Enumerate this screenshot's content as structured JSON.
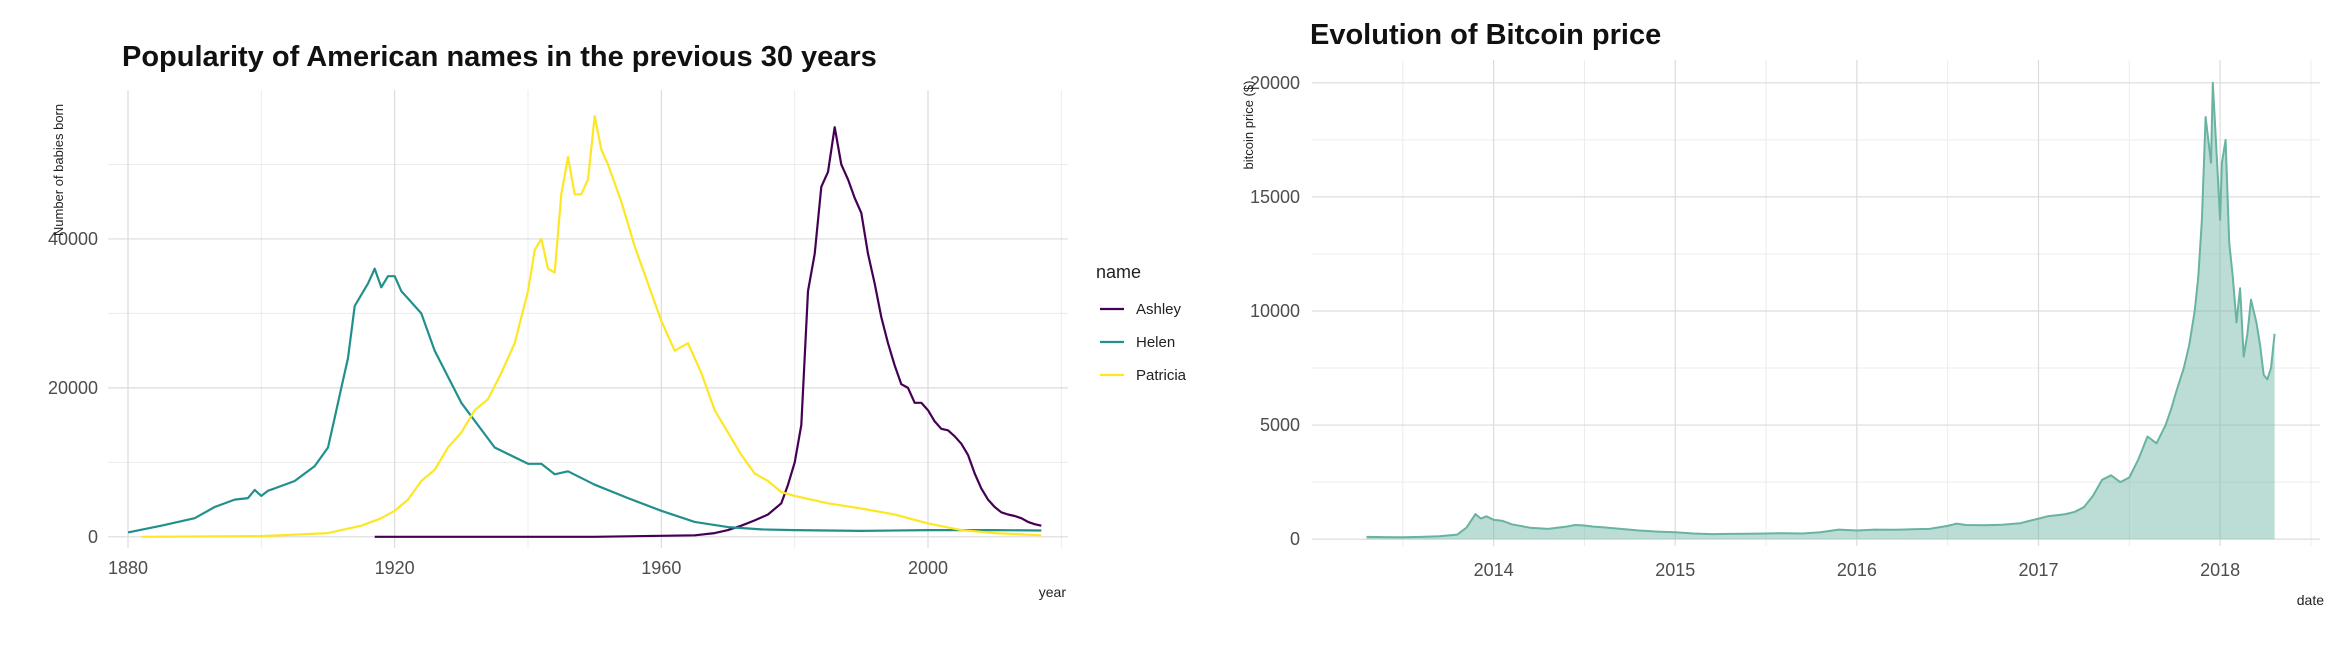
{
  "chart_data": [
    {
      "type": "line",
      "title": "Popularity of American names in the previous 30 years",
      "xlabel": "year",
      "ylabel": "Number of babies born",
      "xlim": [
        1877,
        2021
      ],
      "ylim": [
        -1500,
        60000
      ],
      "x_ticks": [
        1880,
        1920,
        1960,
        2000
      ],
      "y_ticks": [
        0,
        20000,
        40000
      ],
      "grid": true,
      "legend": {
        "title": "name",
        "position": "right"
      },
      "series": [
        {
          "name": "Ashley",
          "color": "#440154",
          "x": [
            1917,
            1930,
            1950,
            1965,
            1968,
            1970,
            1972,
            1974,
            1976,
            1978,
            1979,
            1980,
            1981,
            1982,
            1983,
            1984,
            1985,
            1986,
            1987,
            1988,
            1989,
            1990,
            1991,
            1992,
            1993,
            1994,
            1995,
            1996,
            1997,
            1998,
            1999,
            2000,
            2001,
            2002,
            2003,
            2004,
            2005,
            2006,
            2007,
            2008,
            2009,
            2010,
            2011,
            2012,
            2013,
            2014,
            2015,
            2016,
            2017
          ],
          "y": [
            0,
            0,
            0,
            200,
            500,
            900,
            1500,
            2200,
            3000,
            4500,
            7000,
            10000,
            15000,
            33000,
            38000,
            47000,
            49000,
            55000,
            50000,
            48000,
            45500,
            43500,
            38000,
            34000,
            29500,
            26000,
            23000,
            20500,
            20000,
            18000,
            18000,
            17000,
            15500,
            14500,
            14300,
            13500,
            12500,
            11000,
            8500,
            6500,
            5000,
            4000,
            3300,
            3000,
            2800,
            2500,
            2000,
            1700,
            1500
          ]
        },
        {
          "name": "Helen",
          "color": "#21908C",
          "x": [
            1880,
            1885,
            1890,
            1893,
            1896,
            1898,
            1899,
            1900,
            1901,
            1902,
            1905,
            1908,
            1910,
            1911,
            1912,
            1913,
            1914,
            1915,
            1916,
            1917,
            1918,
            1919,
            1920,
            1921,
            1922,
            1924,
            1926,
            1930,
            1935,
            1940,
            1942,
            1944,
            1946,
            1950,
            1955,
            1960,
            1965,
            1970,
            1975,
            1980,
            1990,
            2000,
            2010,
            2017
          ],
          "y": [
            600,
            1500,
            2500,
            4000,
            5000,
            5200,
            6300,
            5500,
            6200,
            6500,
            7500,
            9500,
            12000,
            16000,
            20000,
            24000,
            31000,
            32500,
            34000,
            36000,
            33500,
            35000,
            35000,
            33000,
            32000,
            30000,
            25000,
            18000,
            12000,
            9800,
            9800,
            8400,
            8800,
            7000,
            5200,
            3500,
            2000,
            1300,
            1000,
            900,
            800,
            900,
            900,
            850
          ]
        },
        {
          "name": "Patricia",
          "color": "#FDE725",
          "x": [
            1882,
            1900,
            1910,
            1915,
            1918,
            1920,
            1922,
            1924,
            1926,
            1928,
            1930,
            1932,
            1934,
            1936,
            1938,
            1940,
            1941,
            1942,
            1943,
            1944,
            1945,
            1946,
            1947,
            1948,
            1949,
            1950,
            1951,
            1952,
            1954,
            1956,
            1958,
            1960,
            1962,
            1964,
            1966,
            1968,
            1970,
            1972,
            1974,
            1976,
            1978,
            1980,
            1985,
            1990,
            1995,
            2000,
            2005,
            2010,
            2017
          ],
          "y": [
            0,
            100,
            500,
            1500,
            2500,
            3500,
            5000,
            7500,
            9000,
            12000,
            14000,
            17000,
            18500,
            22000,
            26000,
            33000,
            38500,
            40000,
            36000,
            35500,
            46000,
            51000,
            46000,
            46000,
            48000,
            56500,
            52000,
            50000,
            45000,
            39000,
            34000,
            29000,
            25000,
            26000,
            22000,
            17000,
            14000,
            11000,
            8500,
            7500,
            6000,
            5500,
            4500,
            3800,
            3000,
            1800,
            900,
            500,
            200
          ]
        }
      ]
    },
    {
      "type": "area",
      "title": "Evolution of Bitcoin price",
      "xlabel": "date",
      "ylabel": "bitcoin price ($)",
      "xlim": [
        2013.0,
        2018.55
      ],
      "ylim": [
        -300,
        21000
      ],
      "x_ticks": [
        2014,
        2015,
        2016,
        2017,
        2018
      ],
      "y_ticks": [
        0,
        5000,
        10000,
        15000,
        20000
      ],
      "grid": true,
      "color": "#69b3a2",
      "x": [
        2013.3,
        2013.4,
        2013.5,
        2013.6,
        2013.7,
        2013.8,
        2013.85,
        2013.9,
        2013.93,
        2013.96,
        2014.0,
        2014.05,
        2014.1,
        2014.2,
        2014.3,
        2014.4,
        2014.45,
        2014.5,
        2014.55,
        2014.6,
        2014.7,
        2014.8,
        2014.9,
        2015.0,
        2015.1,
        2015.2,
        2015.3,
        2015.4,
        2015.5,
        2015.6,
        2015.7,
        2015.8,
        2015.9,
        2016.0,
        2016.1,
        2016.2,
        2016.3,
        2016.4,
        2016.5,
        2016.55,
        2016.6,
        2016.7,
        2016.8,
        2016.9,
        2016.95,
        2017.0,
        2017.05,
        2017.1,
        2017.15,
        2017.2,
        2017.25,
        2017.3,
        2017.35,
        2017.4,
        2017.45,
        2017.5,
        2017.55,
        2017.6,
        2017.65,
        2017.7,
        2017.73,
        2017.76,
        2017.8,
        2017.83,
        2017.86,
        2017.88,
        2017.9,
        2017.92,
        2017.95,
        2017.96,
        2017.98,
        2018.0,
        2018.01,
        2018.03,
        2018.05,
        2018.07,
        2018.09,
        2018.11,
        2018.13,
        2018.15,
        2018.17,
        2018.2,
        2018.22,
        2018.24,
        2018.26,
        2018.28,
        2018.3
      ],
      "y": [
        100,
        90,
        80,
        100,
        130,
        200,
        500,
        1100,
        900,
        1000,
        850,
        800,
        650,
        500,
        450,
        550,
        620,
        600,
        550,
        520,
        450,
        380,
        330,
        300,
        250,
        220,
        230,
        240,
        250,
        260,
        250,
        300,
        420,
        380,
        420,
        410,
        430,
        450,
        580,
        680,
        620,
        610,
        630,
        700,
        800,
        900,
        1000,
        1050,
        1100,
        1200,
        1400,
        1900,
        2600,
        2800,
        2500,
        2700,
        3500,
        4500,
        4200,
        5000,
        5700,
        6500,
        7500,
        8500,
        10000,
        11500,
        14000,
        18500,
        16500,
        20000,
        17000,
        14000,
        16500,
        17500,
        13000,
        11500,
        9500,
        11000,
        8000,
        9000,
        10500,
        9500,
        8500,
        7200,
        7000,
        7500,
        9000
      ]
    }
  ]
}
